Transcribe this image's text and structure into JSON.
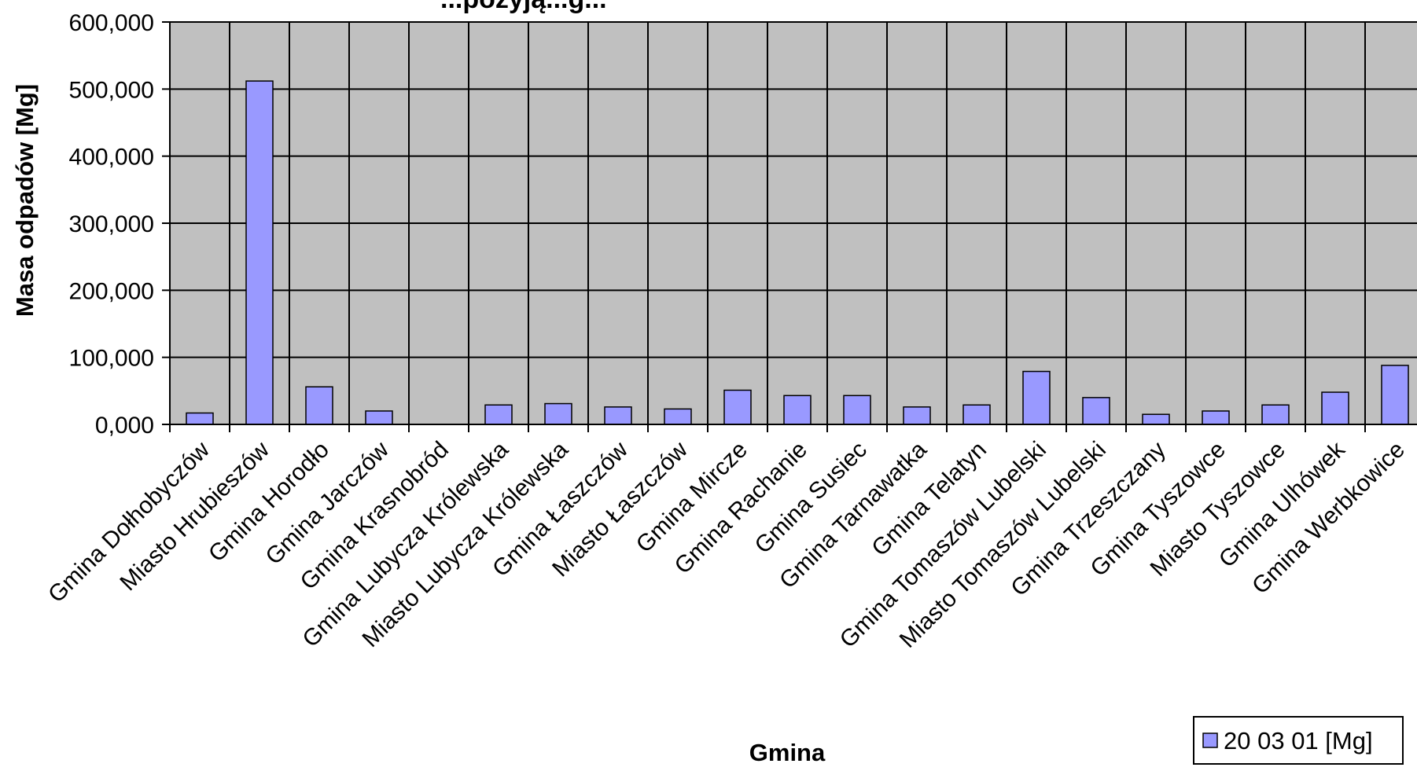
{
  "chart_data": {
    "type": "bar",
    "title": "...pozyją...g...",
    "xlabel": "Gmina",
    "ylabel": "Masa odpadów [Mg]",
    "ylim": [
      0,
      600
    ],
    "yticks": [
      "0,000",
      "100,000",
      "200,000",
      "300,000",
      "400,000",
      "500,000",
      "600,000"
    ],
    "grid": true,
    "legend_position": "bottom-right",
    "colors": {
      "plot_bg": "#c0c0c0",
      "bar_fill": "#9999ff",
      "bar_stroke": "#000000"
    },
    "categories": [
      "Gmina Dołhobyczów",
      "Miasto Hrubieszów",
      "Gmina Horodło",
      "Gmina Jarczów",
      "Gmina Krasnobród",
      "Gmina Lubycza Królewska",
      "Miasto Lubycza Królewska",
      "Gmina Łaszczów",
      "Miasto Łaszczów",
      "Gmina Mircze",
      "Gmina Rachanie",
      "Gmina Susiec",
      "Gmina Tarnawatka",
      "Gmina Telatyn",
      "Gmina Tomaszów Lubelski",
      "Miasto Tomaszów Lubelski",
      "Gmina Trzeszczany",
      "Gmina Tyszowce",
      "Miasto Tyszowce",
      "Gmina Ulhówek",
      "Gmina Werbkowice"
    ],
    "series": [
      {
        "name": "20 03 01 [Mg]",
        "values": [
          17,
          512,
          56,
          20,
          0,
          29,
          31,
          26,
          23,
          51,
          43,
          43,
          26,
          29,
          79,
          40,
          15,
          20,
          29,
          48,
          88
        ]
      }
    ]
  }
}
